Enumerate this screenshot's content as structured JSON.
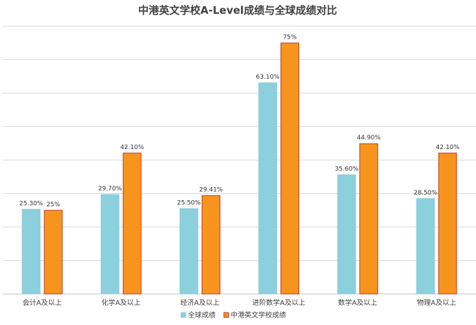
{
  "chart_data": {
    "type": "bar",
    "title": "中港英文学校A-Level成绩与全球成绩对比",
    "categories": [
      "会计A及以上",
      "化学A及以上",
      "经济A及以上",
      "进阶数学A及以上",
      "数学A及以上",
      "物理A及以上"
    ],
    "series": [
      {
        "name": "全球成绩",
        "values": [
          25.3,
          29.7,
          25.5,
          63.1,
          35.6,
          28.5
        ],
        "labels": [
          "25.30%",
          "29.70%",
          "25.50%",
          "63.10%",
          "35.60%",
          "28.50%"
        ],
        "color": "#8ccfdd",
        "stroke": "#8ccfdd"
      },
      {
        "name": "中港英文学校成绩",
        "values": [
          25,
          42.1,
          29.41,
          75,
          44.9,
          42.1
        ],
        "labels": [
          "25%",
          "42.10%",
          "29.41%",
          "75%",
          "44.90%",
          "42.10%"
        ],
        "color": "#f7941d",
        "stroke": "#c0392b"
      }
    ],
    "ylim": [
      0,
      80
    ],
    "grid": true,
    "legend": "bottom"
  }
}
